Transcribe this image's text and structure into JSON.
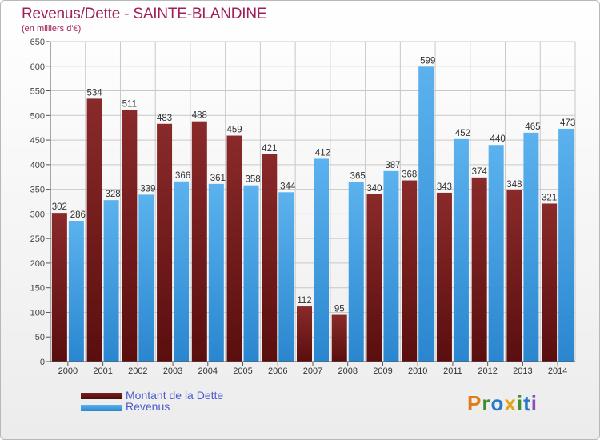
{
  "header": {
    "title": "Revenus/Dette - SAINTE-BLANDINE",
    "unit": "(en milliers d'€)"
  },
  "legend": {
    "dette_label": "Montant de la Dette",
    "revenus_label": "Revenus"
  },
  "logo": {
    "letters": [
      "P",
      "r",
      "o",
      "x",
      "i",
      "t",
      "i"
    ]
  },
  "colors": {
    "dette": "#6e1c1c",
    "dette_light": "#a03a3a",
    "revenus": "#2a8fd8",
    "revenus_light": "#5bb2ee",
    "grid": "#c8c8c8",
    "logo": [
      "#e07b1a",
      "#3d8f2e",
      "#2a78c8",
      "#e2a41a",
      "#3d8f2e",
      "#2a78c8",
      "#8a4fb5"
    ]
  },
  "chart_data": {
    "type": "bar",
    "title": "Revenus/Dette - SAINTE-BLANDINE",
    "ylabel": "(en milliers d'€)",
    "xlabel": "",
    "ylim": [
      0,
      650
    ],
    "yticks": [
      0,
      50,
      100,
      150,
      200,
      250,
      300,
      350,
      400,
      450,
      500,
      550,
      600,
      650
    ],
    "grid": true,
    "legend_position": "bottom-left",
    "categories": [
      "2000",
      "2001",
      "2002",
      "2003",
      "2004",
      "2005",
      "2006",
      "2007",
      "2008",
      "2009",
      "2010",
      "2011",
      "2012",
      "2013",
      "2014"
    ],
    "series": [
      {
        "name": "Montant de la Dette",
        "values": [
          302,
          534,
          511,
          483,
          488,
          459,
          421,
          112,
          95,
          340,
          368,
          343,
          374,
          348,
          321
        ]
      },
      {
        "name": "Revenus",
        "values": [
          286,
          328,
          339,
          366,
          361,
          358,
          344,
          412,
          365,
          387,
          599,
          452,
          440,
          465,
          473
        ]
      }
    ]
  }
}
